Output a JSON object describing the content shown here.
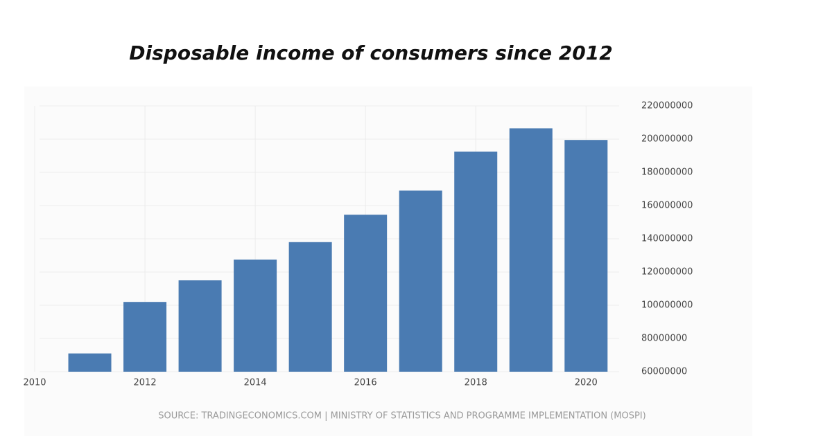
{
  "chart_data": {
    "type": "bar",
    "title": "Disposable income of consumers since 2012",
    "source": "SOURCE: TRADINGECONOMICS.COM | MINISTRY OF STATISTICS AND PROGRAMME IMPLEMENTATION (MOSPI)",
    "x": [
      2011,
      2012,
      2013,
      2014,
      2015,
      2016,
      2017,
      2018,
      2019,
      2020
    ],
    "values": [
      71000000,
      102000000,
      115000000,
      127500000,
      138000000,
      154500000,
      169000000,
      192500000,
      206500000,
      199500000
    ],
    "color": "#4a7bb2",
    "xlim": [
      2010,
      2020.6
    ],
    "xticks": [
      2010,
      2012,
      2014,
      2016,
      2018,
      2020
    ],
    "ylim": [
      60000000,
      220000000
    ],
    "yticks": [
      60000000,
      80000000,
      100000000,
      120000000,
      140000000,
      160000000,
      180000000,
      200000000,
      220000000
    ],
    "grid": true
  }
}
